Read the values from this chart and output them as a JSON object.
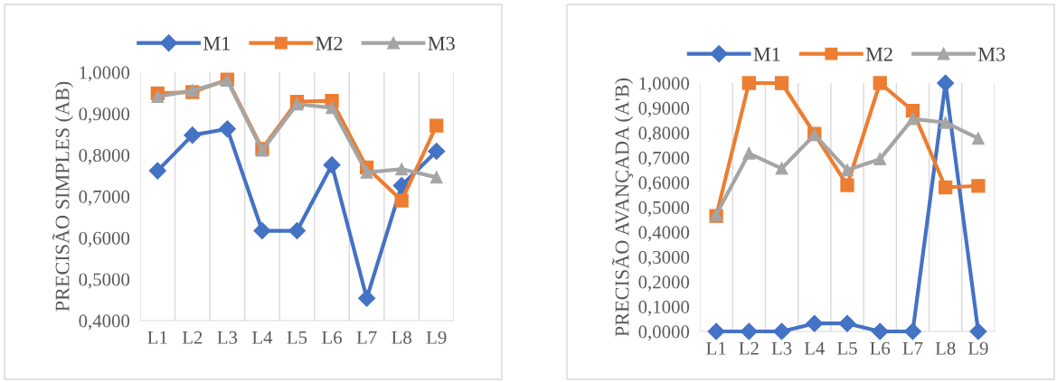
{
  "chart_data": [
    {
      "type": "line",
      "ylabel": "PRECISÃO SIMPLES (AB)",
      "categories": [
        "L1",
        "L2",
        "L3",
        "L4",
        "L5",
        "L6",
        "L7",
        "L8",
        "L9"
      ],
      "series": [
        {
          "name": "M1",
          "color": "#4472c4",
          "marker": "diamond",
          "values": [
            0.762,
            0.848,
            0.863,
            0.617,
            0.617,
            0.776,
            0.454,
            0.726,
            0.809
          ]
        },
        {
          "name": "M2",
          "color": "#ed7d31",
          "marker": "square",
          "values": [
            0.949,
            0.952,
            0.982,
            0.815,
            0.929,
            0.931,
            0.77,
            0.69,
            0.871
          ]
        },
        {
          "name": "M3",
          "color": "#a5a5a5",
          "marker": "triangle",
          "values": [
            0.941,
            0.956,
            0.98,
            0.811,
            0.923,
            0.914,
            0.758,
            0.766,
            0.746
          ]
        }
      ],
      "ylim": [
        0.4,
        1.0
      ],
      "yticks": [
        {
          "value": 0.4,
          "label": "0,4000"
        },
        {
          "value": 0.5,
          "label": "0,5000"
        },
        {
          "value": 0.6,
          "label": "0,6000"
        },
        {
          "value": 0.7,
          "label": "0,7000"
        },
        {
          "value": 0.8,
          "label": "0,8000"
        },
        {
          "value": 0.9,
          "label": "0,9000"
        },
        {
          "value": 1.0,
          "label": "1,0000"
        }
      ],
      "grid": "x",
      "legend": "top"
    },
    {
      "type": "line",
      "ylabel": "PRECISÃO AVANÇADA (A'B)",
      "categories": [
        "L1",
        "L2",
        "L3",
        "L4",
        "L5",
        "L6",
        "L7",
        "L8",
        "L9"
      ],
      "series": [
        {
          "name": "M1",
          "color": "#4472c4",
          "marker": "diamond",
          "values": [
            0.0,
            0.0,
            0.0,
            0.032,
            0.032,
            0.0,
            0.0,
            1.0,
            0.0
          ]
        },
        {
          "name": "M2",
          "color": "#ed7d31",
          "marker": "square",
          "values": [
            0.465,
            1.0,
            1.0,
            0.796,
            0.589,
            1.0,
            0.889,
            0.58,
            0.586
          ]
        },
        {
          "name": "M3",
          "color": "#a5a5a5",
          "marker": "triangle",
          "values": [
            0.47,
            0.717,
            0.656,
            0.792,
            0.65,
            0.694,
            0.856,
            0.841,
            0.777
          ]
        }
      ],
      "ylim": [
        0.0,
        1.0
      ],
      "yticks": [
        {
          "value": 0.0,
          "label": "0,0000"
        },
        {
          "value": 0.1,
          "label": "0,1000"
        },
        {
          "value": 0.2,
          "label": "0,2000"
        },
        {
          "value": 0.3,
          "label": "0,3000"
        },
        {
          "value": 0.4,
          "label": "0,4000"
        },
        {
          "value": 0.5,
          "label": "0,5000"
        },
        {
          "value": 0.6,
          "label": "0,6000"
        },
        {
          "value": 0.7,
          "label": "0,7000"
        },
        {
          "value": 0.8,
          "label": "0,8000"
        },
        {
          "value": 0.9,
          "label": "0,9000"
        },
        {
          "value": 1.0,
          "label": "1,0000"
        }
      ],
      "grid": "x",
      "legend": "top"
    }
  ]
}
